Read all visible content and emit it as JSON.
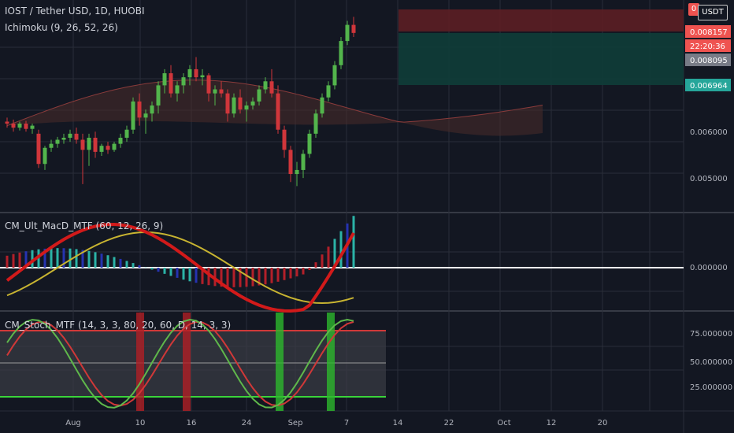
{
  "header": {
    "symbol": "IOST / Tether USD, 1D, HUOBI",
    "indicator": "Ichimoku (9, 26, 52, 26)",
    "currency": "USDT",
    "close_tag": "0"
  },
  "colors": {
    "bg": "#131722",
    "up": "#26a69a",
    "down": "#ef5350",
    "grid": "#2a2e39",
    "upCandle": "#53b54c",
    "downCandle": "#d0363b",
    "macdUp": "#3ad43a",
    "macdDown": "#d21a1a",
    "signal": "#c8b431",
    "stochK": "#5fb84b",
    "stochD": "#d03838",
    "zero": "#ffffff"
  },
  "price_tags": [
    {
      "label": "0.008157",
      "kind": "last"
    },
    {
      "label": "22:20:36",
      "kind": "countdown"
    },
    {
      "label": "0.008095",
      "kind": "grey"
    },
    {
      "label": "0.006964",
      "kind": "teal"
    }
  ],
  "axis": {
    "price_ticks": [
      "0.006000",
      "0.005000"
    ],
    "macd_ticks": [
      "0.000000"
    ],
    "stoch_ticks": [
      "75.000000",
      "50.000000",
      "25.000000"
    ],
    "date_ticks": [
      "Aug",
      "10",
      "16",
      "24",
      "Sep",
      "7",
      "14",
      "22",
      "Oct",
      "12",
      "20"
    ]
  },
  "macd_panel": {
    "title": "CM_Ult_MacD_MTF (60, 12, 26, 9)"
  },
  "stoch_panel": {
    "title": "CM_Stoch_MTF (14, 3, 3, 80, 20, 60, D, 14, 3, 3)"
  },
  "chart_data": {
    "type": "candlestick",
    "title": "IOST / Tether USD, 1D, HUOBI",
    "ylim": [
      0.0042,
      0.0092
    ],
    "candles": [
      [
        0.0063,
        0.0064,
        0.00615,
        0.00625
      ],
      [
        0.00625,
        0.00635,
        0.00605,
        0.00615
      ],
      [
        0.00615,
        0.0063,
        0.00608,
        0.00625
      ],
      [
        0.00625,
        0.00632,
        0.00605,
        0.00612
      ],
      [
        0.00612,
        0.00625,
        0.006,
        0.0062
      ],
      [
        0.006,
        0.0061,
        0.00515,
        0.00525
      ],
      [
        0.00525,
        0.0057,
        0.0051,
        0.00565
      ],
      [
        0.00565,
        0.00585,
        0.00555,
        0.00575
      ],
      [
        0.00575,
        0.00592,
        0.00565,
        0.00585
      ],
      [
        0.00585,
        0.006,
        0.00575,
        0.0059
      ],
      [
        0.0059,
        0.0061,
        0.0058,
        0.006
      ],
      [
        0.006,
        0.00615,
        0.00575,
        0.00585
      ],
      [
        0.00585,
        0.006,
        0.00475,
        0.0056
      ],
      [
        0.0056,
        0.006,
        0.0052,
        0.0059
      ],
      [
        0.0059,
        0.00605,
        0.0054,
        0.00555
      ],
      [
        0.00555,
        0.00575,
        0.00545,
        0.0057
      ],
      [
        0.0057,
        0.0058,
        0.0055,
        0.0056
      ],
      [
        0.0056,
        0.0058,
        0.00555,
        0.00575
      ],
      [
        0.00575,
        0.006,
        0.00565,
        0.0059
      ],
      [
        0.0059,
        0.0062,
        0.0058,
        0.0061
      ],
      [
        0.0061,
        0.0069,
        0.006,
        0.0068
      ],
      [
        0.0068,
        0.007,
        0.0062,
        0.0064
      ],
      [
        0.0064,
        0.0066,
        0.006,
        0.0065
      ],
      [
        0.0065,
        0.0068,
        0.0063,
        0.0067
      ],
      [
        0.0067,
        0.0073,
        0.0065,
        0.0072
      ],
      [
        0.0072,
        0.0076,
        0.007,
        0.0075
      ],
      [
        0.0075,
        0.0077,
        0.0069,
        0.007
      ],
      [
        0.007,
        0.0073,
        0.0068,
        0.0072
      ],
      [
        0.0072,
        0.0075,
        0.007,
        0.0074
      ],
      [
        0.0074,
        0.0077,
        0.0072,
        0.0076
      ],
      [
        0.0076,
        0.0079,
        0.0073,
        0.0074
      ],
      [
        0.0074,
        0.0076,
        0.0072,
        0.00745
      ],
      [
        0.00745,
        0.0075,
        0.0068,
        0.007
      ],
      [
        0.007,
        0.0072,
        0.0067,
        0.0071
      ],
      [
        0.0071,
        0.0073,
        0.0069,
        0.007
      ],
      [
        0.007,
        0.0071,
        0.0063,
        0.0065
      ],
      [
        0.0065,
        0.007,
        0.0064,
        0.0069
      ],
      [
        0.0069,
        0.0071,
        0.0065,
        0.0066
      ],
      [
        0.0066,
        0.0068,
        0.0063,
        0.0067
      ],
      [
        0.0067,
        0.0069,
        0.0066,
        0.0068
      ],
      [
        0.0068,
        0.0072,
        0.0067,
        0.0071
      ],
      [
        0.0071,
        0.0074,
        0.007,
        0.0073
      ],
      [
        0.0073,
        0.0076,
        0.0069,
        0.007
      ],
      [
        0.007,
        0.0072,
        0.006,
        0.0061
      ],
      [
        0.0061,
        0.0062,
        0.0054,
        0.0056
      ],
      [
        0.0056,
        0.0057,
        0.0048,
        0.005
      ],
      [
        0.005,
        0.0053,
        0.0047,
        0.0051
      ],
      [
        0.0051,
        0.0056,
        0.0049,
        0.0055
      ],
      [
        0.0055,
        0.0061,
        0.0054,
        0.006
      ],
      [
        0.006,
        0.0066,
        0.0059,
        0.0065
      ],
      [
        0.0065,
        0.007,
        0.0064,
        0.0069
      ],
      [
        0.0069,
        0.0073,
        0.0068,
        0.0072
      ],
      [
        0.0072,
        0.0078,
        0.0071,
        0.0077
      ],
      [
        0.0077,
        0.0084,
        0.0076,
        0.0083
      ],
      [
        0.0083,
        0.0088,
        0.0082,
        0.0087
      ],
      [
        0.0087,
        0.0089,
        0.0084,
        0.0085
      ]
    ]
  }
}
